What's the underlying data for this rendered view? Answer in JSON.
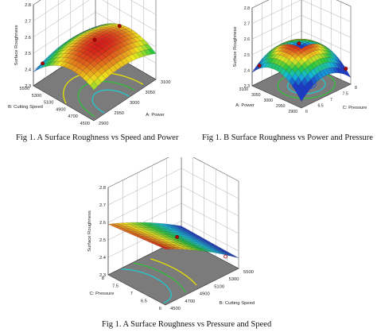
{
  "figures": [
    {
      "caption": "Fig 1. A Surface Roughness vs Speed and Power",
      "chart_data": {
        "type": "surface3d",
        "zlabel": "Surface Roughness",
        "zticks": [
          "2.3",
          "2.4",
          "2.5",
          "2.6",
          "2.7",
          "2.8"
        ],
        "xlabel": "A: Power",
        "xticks": [
          "2900",
          "2950",
          "3000",
          "3050",
          "3100"
        ],
        "ylabel": "B: Cutting Speed",
        "yticks": [
          "4500",
          "4700",
          "4900",
          "5100",
          "5300",
          "5500"
        ],
        "surface_range": [
          2.38,
          2.57
        ]
      }
    },
    {
      "caption": "Fig 1. B Surface Roughness vs Power and Pressure",
      "chart_data": {
        "type": "surface3d",
        "zlabel": "Surface Roughness",
        "zticks": [
          "2.3",
          "2.4",
          "2.5",
          "2.6",
          "2.7",
          "2.8"
        ],
        "xlabel": "C: Pressure",
        "xticks": [
          "6",
          "6.5",
          "7",
          "7.5",
          "8"
        ],
        "ylabel": "A: Power",
        "yticks": [
          "2900",
          "2950",
          "3000",
          "3050",
          "3100"
        ],
        "surface_range": [
          2.42,
          2.56
        ]
      }
    },
    {
      "caption": "Fig 1. A Surface Roughness vs Pressure and Speed",
      "chart_data": {
        "type": "surface3d",
        "zlabel": "Surface Roughness",
        "zticks": [
          "2.3",
          "2.4",
          "2.5",
          "2.6",
          "2.7",
          "2.8"
        ],
        "xlabel": "B: Cutting Speed",
        "xticks": [
          "4500",
          "4700",
          "4900",
          "5100",
          "5300",
          "5500"
        ],
        "ylabel": "C: Pressure",
        "yticks": [
          "6",
          "6.5",
          "7",
          "7.5",
          "8"
        ],
        "surface_range": [
          2.38,
          2.62
        ]
      }
    }
  ]
}
